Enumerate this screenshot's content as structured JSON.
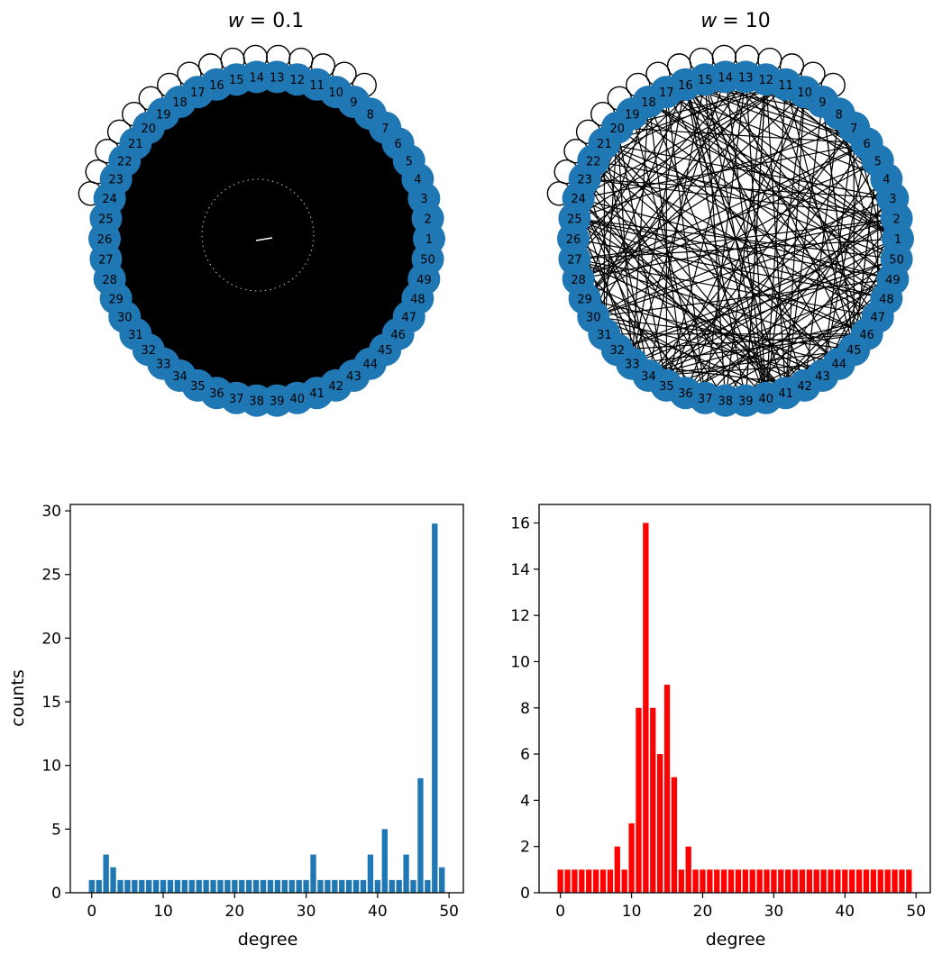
{
  "colors": {
    "node": "#1f77b4",
    "edge": "#000000",
    "hist_left": "#1f77b4",
    "hist_right": "#ff0000"
  },
  "graphs": [
    {
      "title_var": "w",
      "title_value": "= 0.1",
      "n_nodes": 50
    },
    {
      "title_var": "w",
      "title_value": "= 10",
      "n_nodes": 50
    }
  ],
  "chart_data": [
    {
      "type": "bar",
      "xlabel": "degree",
      "ylabel": "counts",
      "xlim": [
        -3,
        52
      ],
      "ylim": [
        0,
        30.5
      ],
      "xticks": [
        0,
        10,
        20,
        30,
        40,
        50
      ],
      "yticks": [
        0,
        5,
        10,
        15,
        20,
        25,
        30
      ],
      "x": [
        0,
        1,
        2,
        3,
        4,
        5,
        6,
        7,
        8,
        9,
        10,
        11,
        12,
        13,
        14,
        15,
        16,
        17,
        18,
        19,
        20,
        21,
        22,
        23,
        24,
        25,
        26,
        27,
        28,
        29,
        30,
        31,
        32,
        33,
        34,
        35,
        36,
        37,
        38,
        39,
        40,
        41,
        42,
        43,
        44,
        45,
        46,
        47,
        48,
        49
      ],
      "values": [
        1,
        1,
        3,
        2,
        1,
        1,
        1,
        1,
        1,
        1,
        1,
        1,
        1,
        1,
        1,
        1,
        1,
        1,
        1,
        1,
        1,
        1,
        1,
        1,
        1,
        1,
        1,
        1,
        1,
        1,
        1,
        3,
        1,
        1,
        1,
        1,
        1,
        1,
        1,
        3,
        1,
        5,
        1,
        1,
        3,
        1,
        9,
        1,
        29,
        2
      ]
    },
    {
      "type": "bar",
      "xlabel": "degree",
      "ylabel": "",
      "xlim": [
        -3,
        52
      ],
      "ylim": [
        0,
        16.8
      ],
      "xticks": [
        0,
        10,
        20,
        30,
        40,
        50
      ],
      "yticks": [
        0,
        2,
        4,
        6,
        8,
        10,
        12,
        14,
        16
      ],
      "x": [
        0,
        1,
        2,
        3,
        4,
        5,
        6,
        7,
        8,
        9,
        10,
        11,
        12,
        13,
        14,
        15,
        16,
        17,
        18,
        19,
        20,
        21,
        22,
        23,
        24,
        25,
        26,
        27,
        28,
        29,
        30,
        31,
        32,
        33,
        34,
        35,
        36,
        37,
        38,
        39,
        40,
        41,
        42,
        43,
        44,
        45,
        46,
        47,
        48,
        49
      ],
      "values": [
        1,
        1,
        1,
        1,
        1,
        1,
        1,
        1,
        2,
        1,
        3,
        8,
        16,
        8,
        6,
        9,
        5,
        1,
        2,
        1,
        1,
        1,
        1,
        1,
        1,
        1,
        1,
        1,
        1,
        1,
        1,
        1,
        1,
        1,
        1,
        1,
        1,
        1,
        1,
        1,
        1,
        1,
        1,
        1,
        1,
        1,
        1,
        1,
        1,
        1
      ]
    }
  ]
}
